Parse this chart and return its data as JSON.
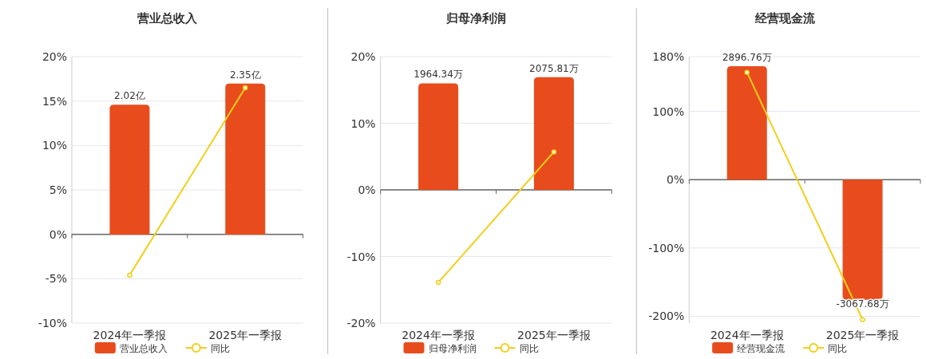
{
  "chart_data": [
    {
      "type": "bar",
      "title": "营业总收入",
      "categories": [
        "2024年一季报",
        "2025年一季报"
      ],
      "series": [
        {
          "name": "营业总收入",
          "type": "bar",
          "axis": "y2",
          "color": "#e84c1c",
          "values": [
            2.02,
            2.35
          ],
          "value_labels": [
            "2.02亿",
            "2.35亿"
          ]
        },
        {
          "name": "同比",
          "type": "line",
          "color": "#f2cf1b",
          "marker": "circle",
          "values": [
            -4.6,
            16.5
          ]
        }
      ],
      "ylim": [
        -10,
        20
      ],
      "yticks": [
        {
          "value": -10,
          "label": "-10%"
        },
        {
          "value": -5,
          "label": "-5%"
        },
        {
          "value": 0,
          "label": "0%"
        },
        {
          "value": 5,
          "label": "5%"
        },
        {
          "value": 10,
          "label": "10%"
        },
        {
          "value": 15,
          "label": "15%"
        },
        {
          "value": 20,
          "label": "20%"
        }
      ],
      "y2lim": [
        -1.38,
        2.77
      ],
      "grid": "y",
      "legend": "bottom"
    },
    {
      "type": "bar",
      "title": "归母净利润",
      "categories": [
        "2024年一季报",
        "2025年一季报"
      ],
      "series": [
        {
          "name": "归母净利润",
          "type": "bar",
          "axis": "y2",
          "color": "#e84c1c",
          "values": [
            1964.34,
            2075.81
          ],
          "value_labels": [
            "1964.34万",
            "2075.81万"
          ]
        },
        {
          "name": "同比",
          "type": "line",
          "color": "#f2cf1b",
          "marker": "circle",
          "values": [
            -13.9,
            5.7
          ]
        }
      ],
      "ylim": [
        -20,
        20
      ],
      "yticks": [
        {
          "value": -20,
          "label": "-20%"
        },
        {
          "value": -10,
          "label": "-10%"
        },
        {
          "value": 0,
          "label": "0%"
        },
        {
          "value": 10,
          "label": "10%"
        },
        {
          "value": 20,
          "label": "20%"
        }
      ],
      "y2lim": [
        -2456,
        2456
      ],
      "grid": "y",
      "legend": "bottom"
    },
    {
      "type": "bar",
      "title": "经营现金流",
      "categories": [
        "2024年一季报",
        "2025年一季报"
      ],
      "series": [
        {
          "name": "经营现金流",
          "type": "bar",
          "axis": "y2",
          "color": "#e84c1c",
          "values": [
            2896.76,
            -3067.68
          ],
          "value_labels": [
            "2896.76万",
            "-3067.68万"
          ]
        },
        {
          "name": "同比",
          "type": "line",
          "color": "#f2cf1b",
          "marker": "circle",
          "values": [
            157,
            -205
          ]
        }
      ],
      "ylim": [
        -210,
        180
      ],
      "yticks": [
        {
          "value": -200,
          "label": "-200%"
        },
        {
          "value": -100,
          "label": "-100%"
        },
        {
          "value": 0,
          "label": "0%"
        },
        {
          "value": 100,
          "label": "100%"
        },
        {
          "value": 180,
          "label": "180%"
        }
      ],
      "y2lim": [
        -3665,
        3141
      ],
      "grid": "y",
      "legend": "bottom"
    }
  ]
}
